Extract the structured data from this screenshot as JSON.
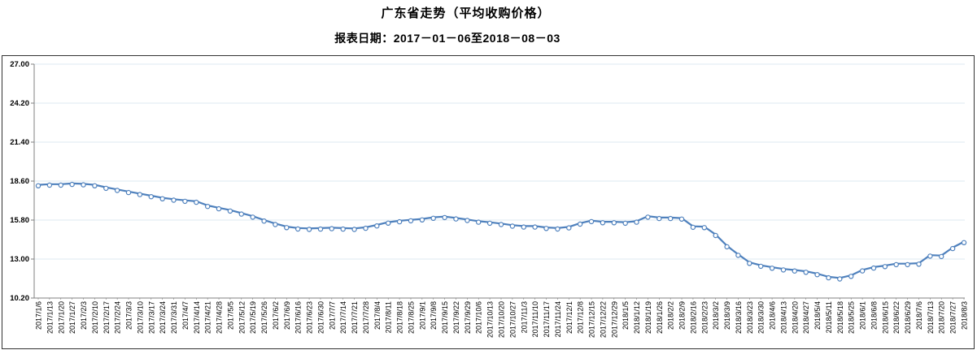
{
  "header": {
    "title": "广东省走势（平均收购价格）",
    "subtitle": "报表日期：2017－01－06至2018－08－03"
  },
  "chart_data": {
    "type": "line",
    "title": "广东省走势（平均收购价格）",
    "subtitle": "报表日期：2017－01－06至2018－08－03",
    "xlabel": "",
    "ylabel": "",
    "ylim": [
      10.2,
      27.0
    ],
    "yticks": [
      27.0,
      24.2,
      21.4,
      18.6,
      15.8,
      13.0,
      10.2
    ],
    "grid": "horizontal",
    "legend": "none",
    "line_color": "#4f81bd",
    "marker": "open-circle",
    "marker_fill": "#ffffff",
    "gridline_color": "#dde8f1",
    "axis_color": "#808080",
    "x": [
      "2017/1/6",
      "2017/1/13",
      "2017/1/20",
      "2017/1/27",
      "2017/2/3",
      "2017/2/10",
      "2017/2/17",
      "2017/2/24",
      "2017/3/3",
      "2017/3/10",
      "2017/3/17",
      "2017/3/24",
      "2017/3/31",
      "2017/4/7",
      "2017/4/14",
      "2017/4/21",
      "2017/4/28",
      "2017/5/5",
      "2017/5/12",
      "2017/5/19",
      "2017/5/26",
      "2017/6/2",
      "2017/6/9",
      "2017/6/16",
      "2017/6/23",
      "2017/6/30",
      "2017/7/7",
      "2017/7/14",
      "2017/7/21",
      "2017/7/28",
      "2017/8/4",
      "2017/8/11",
      "2017/8/18",
      "2017/8/25",
      "2017/9/1",
      "2017/9/8",
      "2017/9/15",
      "2017/9/22",
      "2017/9/29",
      "2017/10/6",
      "2017/10/13",
      "2017/10/20",
      "2017/10/27",
      "2017/11/3",
      "2017/11/10",
      "2017/11/17",
      "2017/11/24",
      "2017/12/1",
      "2017/12/8",
      "2017/12/15",
      "2017/12/22",
      "2017/12/29",
      "2018/1/5",
      "2018/1/12",
      "2018/1/19",
      "2018/1/26",
      "2018/2/2",
      "2018/2/9",
      "2018/2/16",
      "2018/2/23",
      "2018/3/2",
      "2018/3/9",
      "2018/3/16",
      "2018/3/23",
      "2018/3/30",
      "2018/4/6",
      "2018/4/13",
      "2018/4/20",
      "2018/4/27",
      "2018/5/4",
      "2018/5/11",
      "2018/5/18",
      "2018/5/25",
      "2018/6/1",
      "2018/6/8",
      "2018/6/15",
      "2018/6/22",
      "2018/6/29",
      "2018/7/6",
      "2018/7/13",
      "2018/7/20",
      "2018/7/27",
      "2018/8/3"
    ],
    "series": [
      {
        "name": "平均收购价格",
        "values": [
          18.33,
          18.38,
          18.38,
          18.43,
          18.4,
          18.33,
          18.15,
          18.0,
          17.85,
          17.7,
          17.55,
          17.4,
          17.3,
          17.22,
          17.15,
          16.85,
          16.68,
          16.52,
          16.3,
          16.08,
          15.8,
          15.55,
          15.33,
          15.23,
          15.2,
          15.22,
          15.25,
          15.22,
          15.2,
          15.28,
          15.45,
          15.65,
          15.75,
          15.82,
          15.88,
          16.0,
          16.05,
          15.95,
          15.84,
          15.72,
          15.64,
          15.55,
          15.43,
          15.37,
          15.37,
          15.27,
          15.23,
          15.31,
          15.58,
          15.76,
          15.68,
          15.68,
          15.64,
          15.72,
          16.08,
          15.98,
          15.98,
          15.94,
          15.35,
          15.33,
          14.76,
          13.95,
          13.34,
          12.76,
          12.55,
          12.41,
          12.29,
          12.21,
          12.12,
          11.95,
          11.72,
          11.64,
          11.83,
          12.22,
          12.42,
          12.53,
          12.67,
          12.67,
          12.7,
          13.28,
          13.25,
          13.82,
          14.25
        ]
      }
    ]
  }
}
